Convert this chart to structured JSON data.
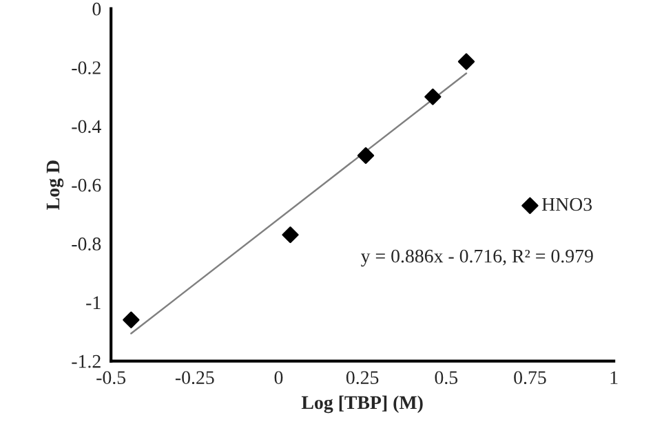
{
  "chart_data": {
    "type": "scatter",
    "xlabel": "Log [TBP] (M)",
    "ylabel": "Log D",
    "series": [
      {
        "name": "HNO3",
        "color": "#000000",
        "marker": "diamond",
        "x": [
          -0.44,
          0.035,
          0.26,
          0.46,
          0.56
        ],
        "values": [
          -1.06,
          -0.77,
          -0.5,
          -0.3,
          -0.18
        ]
      },
      {
        "type": "line",
        "color": "#808080",
        "marker": "none",
        "x": [
          -0.44,
          0.56
        ],
        "values": [
          -1.106,
          -0.22
        ]
      }
    ],
    "xlim": [
      -0.5,
      1
    ],
    "xticks": [
      -0.5,
      -0.25,
      0,
      0.25,
      0.5,
      0.75,
      1
    ],
    "ylim": [
      -1.2,
      0
    ],
    "yticks": [
      -1.2,
      -1,
      -0.8,
      -0.6,
      -0.4,
      -0.2,
      0
    ],
    "annotations": [
      "y = 0.886x - 0.716, R² = 0.979"
    ],
    "legend": "right",
    "grid": false
  }
}
